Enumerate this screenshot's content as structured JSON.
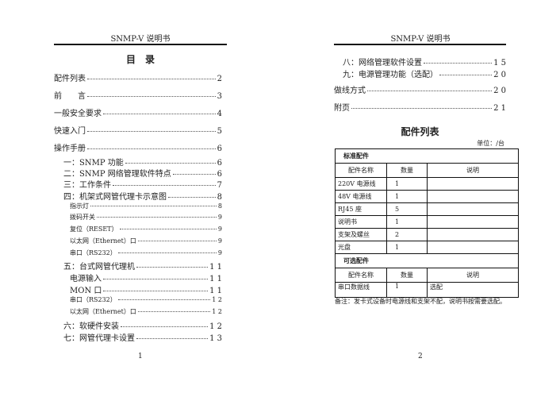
{
  "pages": [
    {
      "header": "SNMP-V 说明书",
      "page_number": "1",
      "title": "目　录",
      "toc_main": [
        [
          "配件列表",
          "2"
        ],
        [
          "前　　言",
          "3"
        ],
        [
          "一般安全要求",
          "4"
        ],
        [
          "快速入门",
          "5"
        ],
        [
          "操作手册",
          "6"
        ]
      ],
      "toc_sub": [
        [
          "一：SNMP 功能",
          "6",
          1
        ],
        [
          "二：SNMP 网络管理软件特点",
          "6",
          1
        ],
        [
          "三：工作条件",
          "7",
          1
        ],
        [
          "四：机架式网管代理卡示意图",
          "8",
          1
        ],
        [
          "指示灯",
          "8",
          2
        ],
        [
          "拨码开关",
          "9",
          2
        ],
        [
          "复位（RESET）",
          "9",
          2
        ],
        [
          "以太网（Ethernet）口",
          "9",
          2
        ],
        [
          "串口（RS232）",
          "9",
          2
        ],
        [
          "五：台式网管代理机",
          "1 1",
          1
        ],
        [
          "电源输入",
          "1 1",
          3
        ],
        [
          "MON 口",
          "1 1",
          3
        ],
        [
          "串口（RS232）",
          "1 2",
          2
        ],
        [
          "以太网（Ethernet）口",
          "1 2",
          2
        ],
        [
          "六：软硬件安装",
          "1 2",
          1
        ],
        [
          "七：网管代理卡设置",
          "1 3",
          1
        ]
      ]
    },
    {
      "header": "SNMP-V 说明书",
      "page_number": "2",
      "toc_sub": [
        [
          "八：网络管理软件设置",
          "1 5"
        ],
        [
          "九：电源管理功能（选配）",
          "2 0"
        ]
      ],
      "toc_main": [
        [
          "做线方式",
          "2 0"
        ],
        [
          "附页",
          "2 1"
        ]
      ],
      "title": "配件列表",
      "unit": "单位：/台",
      "table": {
        "standard_label": "标准配件",
        "optional_label": "可选配件",
        "headers": [
          "配件名称",
          "数量",
          "说明"
        ],
        "standard_rows": [
          [
            "220V 电源线",
            "1",
            ""
          ],
          [
            "48V 电源线",
            "1",
            ""
          ],
          [
            "RJ45 座",
            "5",
            ""
          ],
          [
            "说明书",
            "1",
            ""
          ],
          [
            "支架及螺丝",
            "2",
            ""
          ],
          [
            "光盘",
            "1",
            ""
          ]
        ],
        "optional_rows": [
          [
            "串口数据线",
            "1",
            "选配"
          ]
        ]
      },
      "note": "备注：发卡式设备时电源线和支架不配，说明书按需要选配。"
    }
  ]
}
